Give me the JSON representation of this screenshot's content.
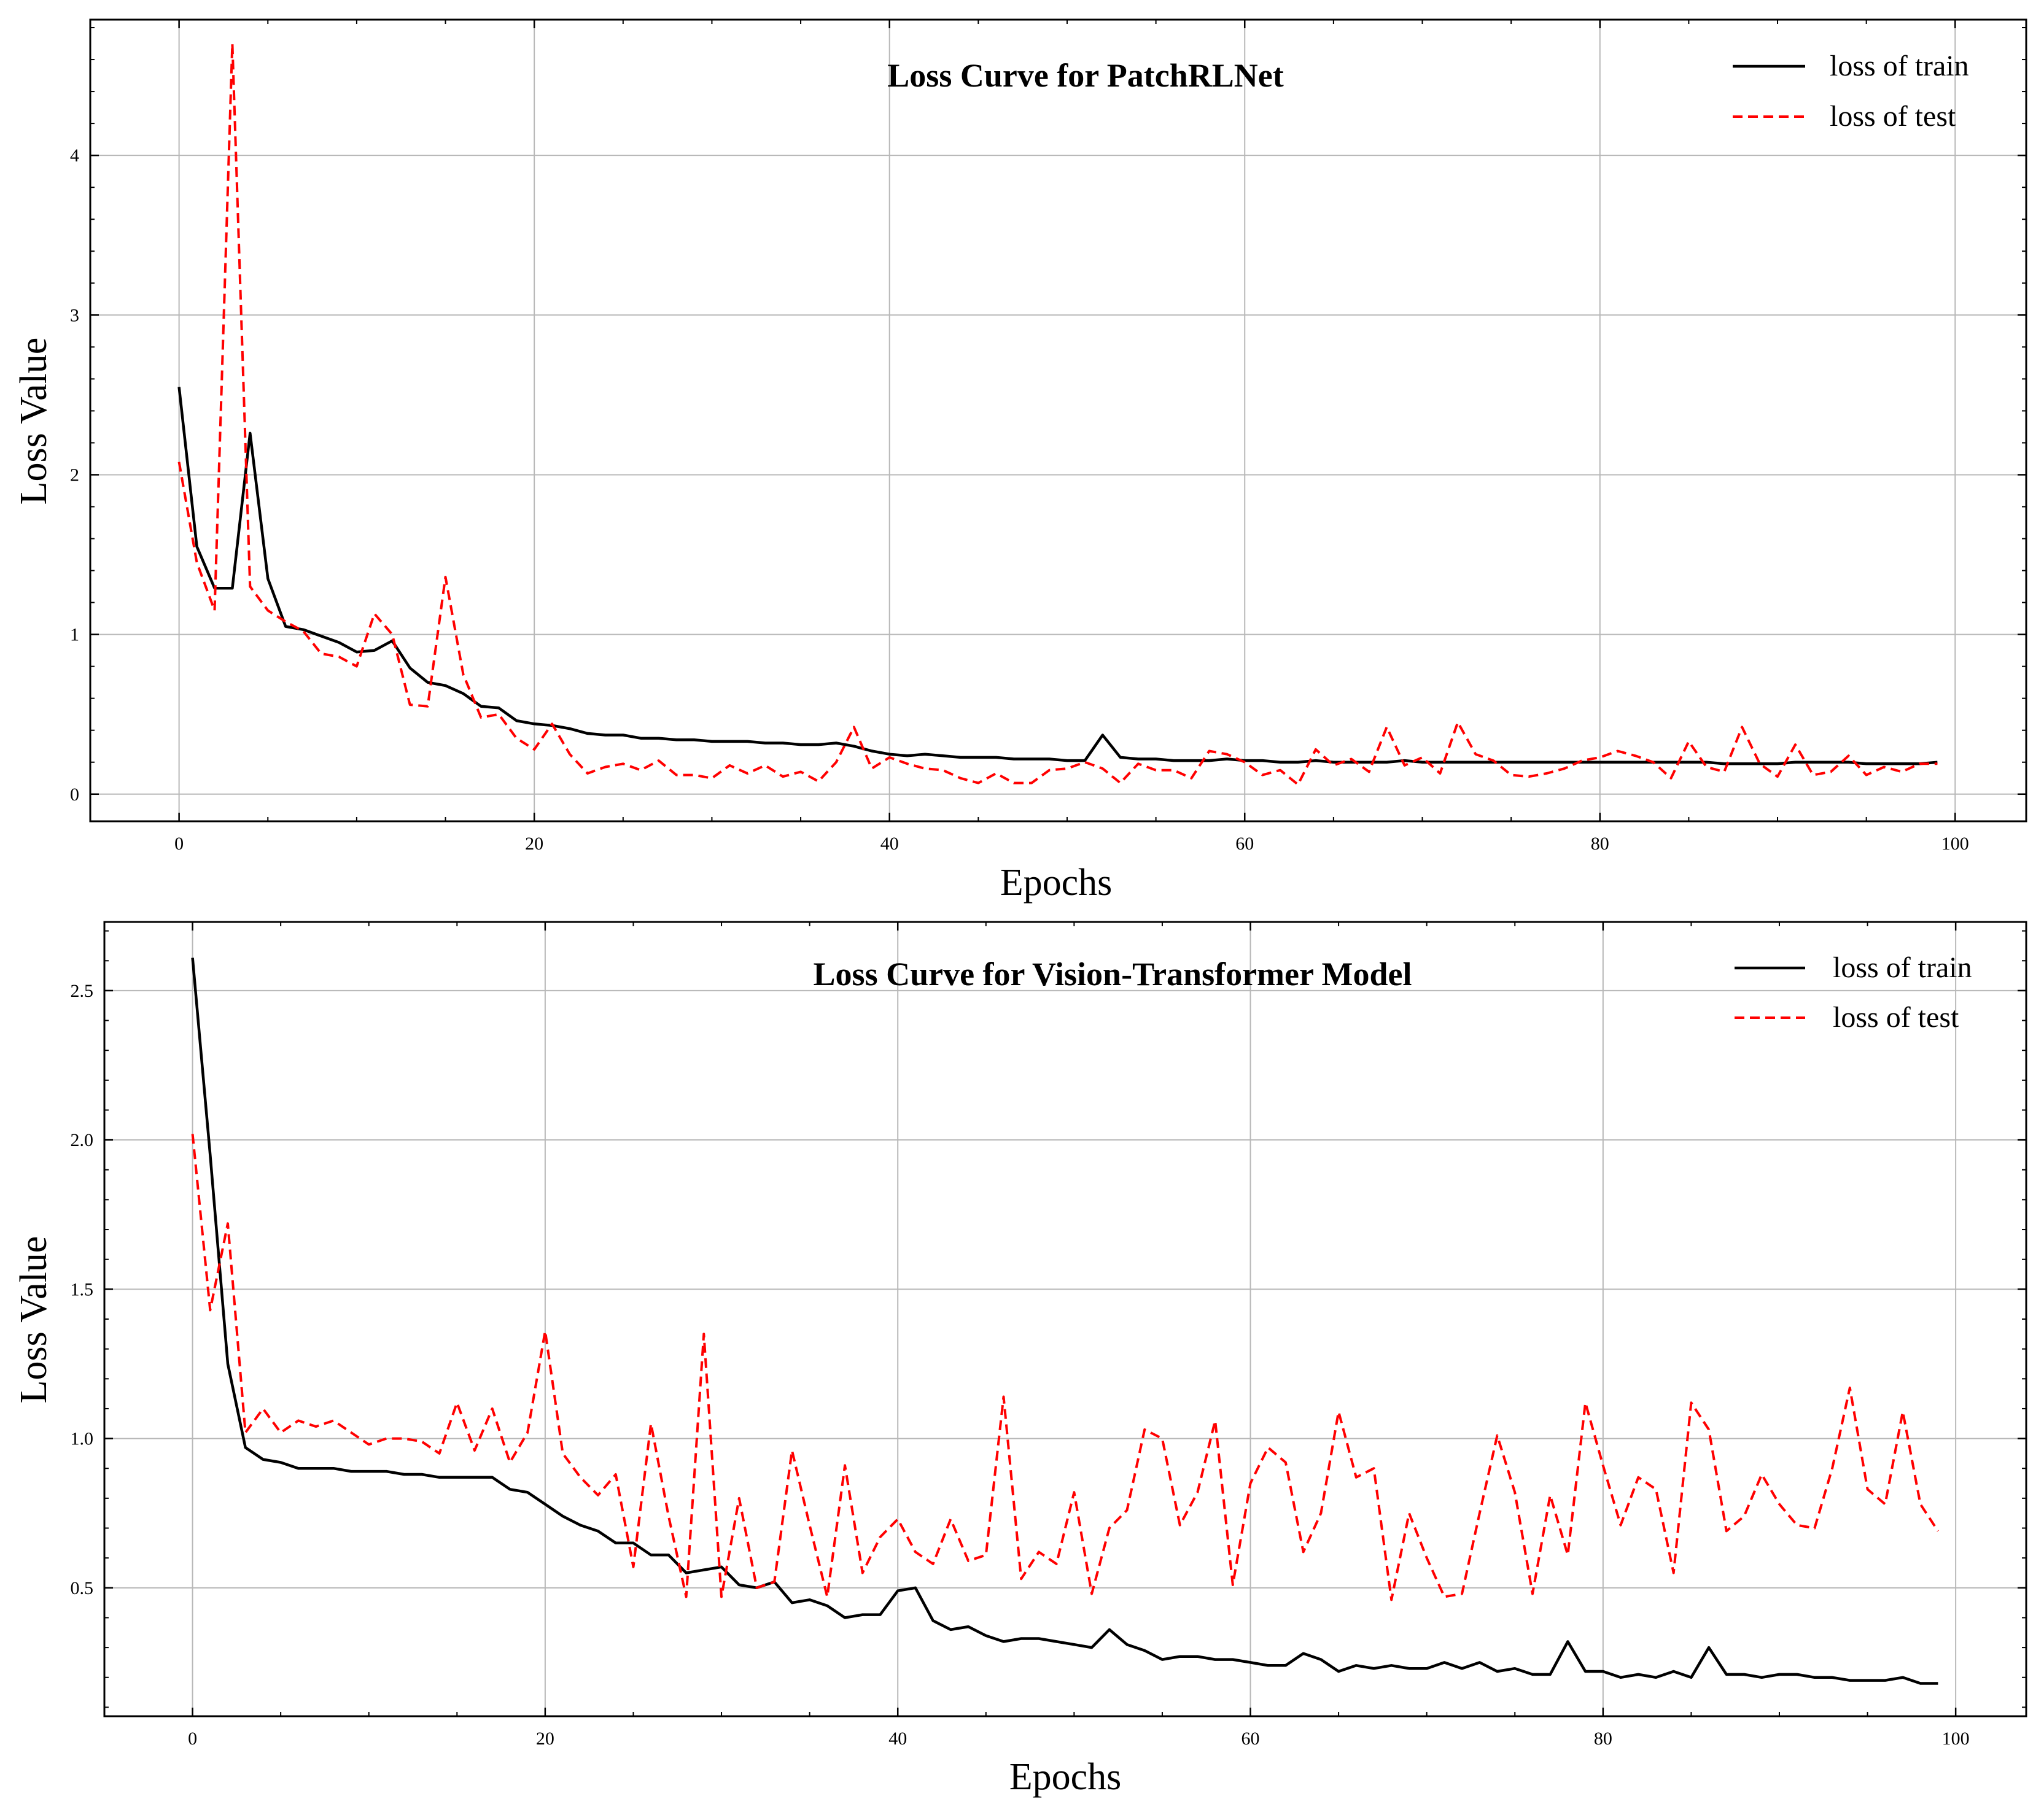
{
  "chart_data": [
    {
      "type": "line",
      "title": "Loss Curve for PatchRLNet",
      "xlabel": "Epochs",
      "ylabel": "Loss Value",
      "xlim": [
        -5,
        104
      ],
      "ylim": [
        -0.17,
        4.85
      ],
      "xticks": [
        0,
        20,
        40,
        60,
        80,
        100
      ],
      "yticks": [
        0,
        1,
        2,
        3,
        4
      ],
      "grid": true,
      "legend_position": "top-right",
      "series": [
        {
          "name": "loss of train",
          "color": "#000000",
          "style": "solid",
          "values": [
            2.55,
            1.55,
            1.29,
            1.29,
            2.26,
            1.35,
            1.05,
            1.03,
            0.99,
            0.95,
            0.89,
            0.9,
            0.96,
            0.79,
            0.7,
            0.68,
            0.63,
            0.55,
            0.54,
            0.46,
            0.44,
            0.43,
            0.41,
            0.38,
            0.37,
            0.37,
            0.35,
            0.35,
            0.34,
            0.34,
            0.33,
            0.33,
            0.33,
            0.32,
            0.32,
            0.31,
            0.31,
            0.32,
            0.3,
            0.27,
            0.25,
            0.24,
            0.25,
            0.24,
            0.23,
            0.23,
            0.23,
            0.22,
            0.22,
            0.22,
            0.21,
            0.21,
            0.37,
            0.23,
            0.22,
            0.22,
            0.21,
            0.21,
            0.21,
            0.22,
            0.21,
            0.21,
            0.2,
            0.2,
            0.21,
            0.2,
            0.2,
            0.2,
            0.2,
            0.21,
            0.2,
            0.2,
            0.2,
            0.2,
            0.2,
            0.2,
            0.2,
            0.2,
            0.2,
            0.2,
            0.2,
            0.2,
            0.2,
            0.2,
            0.2,
            0.2,
            0.2,
            0.19,
            0.19,
            0.19,
            0.19,
            0.2,
            0.2,
            0.2,
            0.2,
            0.19,
            0.19,
            0.19,
            0.19,
            0.2
          ]
        },
        {
          "name": "loss of test",
          "color": "#ff0000",
          "style": "dashed",
          "values": [
            2.08,
            1.45,
            1.15,
            4.7,
            1.3,
            1.15,
            1.08,
            1.02,
            0.88,
            0.86,
            0.8,
            1.13,
            1.0,
            0.56,
            0.55,
            1.36,
            0.75,
            0.48,
            0.5,
            0.35,
            0.28,
            0.44,
            0.25,
            0.13,
            0.17,
            0.19,
            0.15,
            0.21,
            0.12,
            0.12,
            0.1,
            0.18,
            0.13,
            0.18,
            0.11,
            0.14,
            0.08,
            0.2,
            0.42,
            0.16,
            0.23,
            0.19,
            0.16,
            0.15,
            0.1,
            0.07,
            0.13,
            0.07,
            0.07,
            0.15,
            0.16,
            0.2,
            0.16,
            0.07,
            0.19,
            0.15,
            0.15,
            0.1,
            0.27,
            0.25,
            0.2,
            0.12,
            0.15,
            0.06,
            0.28,
            0.18,
            0.22,
            0.14,
            0.42,
            0.18,
            0.23,
            0.13,
            0.45,
            0.25,
            0.21,
            0.12,
            0.11,
            0.13,
            0.16,
            0.21,
            0.23,
            0.27,
            0.24,
            0.2,
            0.1,
            0.33,
            0.17,
            0.14,
            0.42,
            0.19,
            0.11,
            0.31,
            0.12,
            0.14,
            0.24,
            0.12,
            0.17,
            0.14,
            0.19,
            0.19
          ]
        }
      ]
    },
    {
      "type": "line",
      "title": "Loss Curve for Vision-Transformer Model",
      "xlabel": "Epochs",
      "ylabel": "Loss Value",
      "xlim": [
        -5,
        104
      ],
      "ylim": [
        0.07,
        2.73
      ],
      "xticks": [
        0,
        20,
        40,
        60,
        80,
        100
      ],
      "yticks": [
        0.5,
        1.0,
        1.5,
        2.0,
        2.5
      ],
      "grid": true,
      "legend_position": "top-right",
      "series": [
        {
          "name": "loss of train",
          "color": "#000000",
          "style": "solid",
          "values": [
            2.61,
            1.95,
            1.25,
            0.97,
            0.93,
            0.92,
            0.9,
            0.9,
            0.9,
            0.89,
            0.89,
            0.89,
            0.88,
            0.88,
            0.87,
            0.87,
            0.87,
            0.87,
            0.83,
            0.82,
            0.78,
            0.74,
            0.71,
            0.69,
            0.65,
            0.65,
            0.61,
            0.61,
            0.55,
            0.56,
            0.57,
            0.51,
            0.5,
            0.52,
            0.45,
            0.46,
            0.44,
            0.4,
            0.41,
            0.41,
            0.49,
            0.5,
            0.39,
            0.36,
            0.37,
            0.34,
            0.32,
            0.33,
            0.33,
            0.32,
            0.31,
            0.3,
            0.36,
            0.31,
            0.29,
            0.26,
            0.27,
            0.27,
            0.26,
            0.26,
            0.25,
            0.24,
            0.24,
            0.28,
            0.26,
            0.22,
            0.24,
            0.23,
            0.24,
            0.23,
            0.23,
            0.25,
            0.23,
            0.25,
            0.22,
            0.23,
            0.21,
            0.21,
            0.32,
            0.22,
            0.22,
            0.2,
            0.21,
            0.2,
            0.22,
            0.2,
            0.3,
            0.21,
            0.21,
            0.2,
            0.21,
            0.21,
            0.2,
            0.2,
            0.19,
            0.19,
            0.19,
            0.2,
            0.18,
            0.18
          ]
        },
        {
          "name": "loss of test",
          "color": "#ff0000",
          "style": "dashed",
          "values": [
            2.02,
            1.43,
            1.72,
            1.02,
            1.1,
            1.02,
            1.06,
            1.04,
            1.06,
            1.02,
            0.98,
            1.0,
            1.0,
            0.99,
            0.95,
            1.12,
            0.96,
            1.1,
            0.92,
            1.02,
            1.36,
            0.95,
            0.87,
            0.81,
            0.88,
            0.57,
            1.05,
            0.74,
            0.47,
            1.35,
            0.47,
            0.8,
            0.5,
            0.52,
            0.96,
            0.71,
            0.47,
            0.91,
            0.55,
            0.67,
            0.73,
            0.62,
            0.58,
            0.73,
            0.59,
            0.61,
            1.14,
            0.53,
            0.62,
            0.58,
            0.82,
            0.48,
            0.7,
            0.76,
            1.03,
            1.0,
            0.71,
            0.82,
            1.06,
            0.51,
            0.85,
            0.97,
            0.92,
            0.62,
            0.75,
            1.09,
            0.87,
            0.9,
            0.46,
            0.75,
            0.6,
            0.47,
            0.48,
            0.75,
            1.01,
            0.82,
            0.48,
            0.81,
            0.61,
            1.12,
            0.91,
            0.71,
            0.87,
            0.83,
            0.55,
            1.12,
            1.03,
            0.69,
            0.74,
            0.88,
            0.78,
            0.71,
            0.7,
            0.9,
            1.17,
            0.83,
            0.78,
            1.09,
            0.78,
            0.69
          ]
        }
      ]
    }
  ]
}
